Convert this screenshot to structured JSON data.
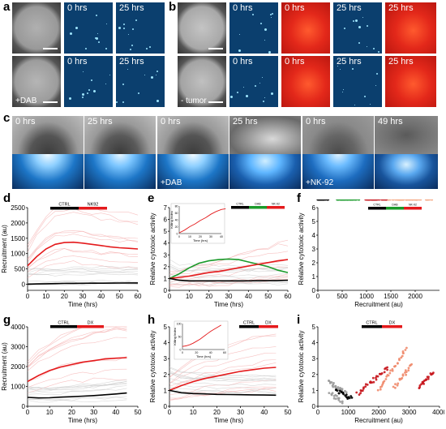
{
  "panel_labels": {
    "a": "a",
    "b": "b",
    "c": "c",
    "d": "d",
    "e": "e",
    "f": "f",
    "g": "g",
    "h": "h",
    "i": "i"
  },
  "panel_a": {
    "row1": {
      "t1": "0 hrs",
      "t2": "25 hrs"
    },
    "row2": {
      "t1": "0 hrs",
      "t2": "25 hrs",
      "treatment": "+DAB"
    }
  },
  "panel_b": {
    "row1": {
      "t1": "0 hrs",
      "t2": "0 hrs",
      "t3": "25 hrs",
      "t4": "25 hrs"
    },
    "row2": {
      "t1": "0 hrs",
      "t2": "0 hrs",
      "t3": "25 hrs",
      "t4": "25 hrs",
      "treatment": "- tumor"
    }
  },
  "panel_c": {
    "g1": {
      "t1": "0 hrs",
      "t2": "25 hrs"
    },
    "g2": {
      "t1": "0 hrs",
      "t2": "25 hrs",
      "treatment": "+DAB"
    },
    "g3": {
      "t1": "0 hrs",
      "t2": "49 hrs",
      "treatment": "+NK-92"
    }
  },
  "colors": {
    "ctrl": "#000000",
    "red": "#e41a1c",
    "green": "#1a9a2a",
    "faint_red": "#f3a8a8",
    "faint_gray": "#c8c8c8",
    "micro_bg": "#0b3f6e",
    "fluor_red": "#d81d12"
  },
  "chart_data": [
    {
      "id": "d",
      "type": "line",
      "title": "",
      "xlabel": "Time (hrs)",
      "ylabel": "Recruitment (au)",
      "xlim": [
        0,
        60
      ],
      "ylim": [
        -200,
        2500
      ],
      "xticks": [
        0,
        10,
        20,
        30,
        40,
        50,
        60
      ],
      "yticks": [
        0,
        500,
        1000,
        1500,
        2000,
        2500
      ],
      "legend": {
        "ctrl": "CTRL",
        "treat": "NK92"
      },
      "x": [
        0,
        5,
        10,
        15,
        20,
        25,
        30,
        35,
        40,
        45,
        50,
        55,
        60
      ],
      "series": [
        {
          "color": "#e41a1c",
          "values": [
            600,
            900,
            1150,
            1300,
            1360,
            1370,
            1340,
            1300,
            1260,
            1220,
            1190,
            1170,
            1150
          ]
        },
        {
          "color": "#000000",
          "values": [
            0,
            10,
            15,
            20,
            25,
            28,
            30,
            32,
            34,
            36,
            38,
            40,
            42
          ]
        }
      ]
    },
    {
      "id": "e",
      "type": "line",
      "title": "",
      "xlabel": "Time (hrs)",
      "ylabel": "Relative cytotoxic activity",
      "xlim": [
        0,
        60
      ],
      "ylim": [
        0,
        7
      ],
      "xticks": [
        0,
        10,
        20,
        30,
        40,
        50,
        60
      ],
      "yticks": [
        0,
        1,
        2,
        3,
        4,
        5,
        6,
        7
      ],
      "legend": {
        "ctrl": "CTRL",
        "mid": "DAB",
        "treat": "NK-92"
      },
      "x": [
        0,
        5,
        10,
        15,
        20,
        25,
        30,
        35,
        40,
        45,
        50,
        55,
        60
      ],
      "series": [
        {
          "color": "#1a9a2a",
          "values": [
            1.0,
            1.4,
            1.9,
            2.3,
            2.5,
            2.6,
            2.65,
            2.6,
            2.4,
            2.2,
            2.0,
            1.7,
            1.5
          ]
        },
        {
          "color": "#e41a1c",
          "values": [
            1.0,
            1.1,
            1.2,
            1.35,
            1.5,
            1.6,
            1.75,
            1.9,
            2.05,
            2.2,
            2.35,
            2.5,
            2.6
          ]
        },
        {
          "color": "#000000",
          "values": [
            1.0,
            0.85,
            0.8,
            0.8,
            0.8,
            0.8,
            0.8,
            0.8,
            0.8,
            0.82,
            0.82,
            0.83,
            0.85
          ]
        }
      ],
      "inset": {
        "xlabel": "Time (hrs)",
        "ylabel": "Killing Index",
        "xlim": [
          0,
          40
        ],
        "ylim": [
          0,
          80
        ],
        "xticks": [
          0,
          10,
          20,
          30,
          40
        ],
        "yticks": [
          0,
          20,
          40,
          60,
          80
        ],
        "x": [
          0,
          5,
          10,
          15,
          20,
          25,
          30,
          35,
          40,
          44
        ],
        "values": [
          2,
          10,
          20,
          28,
          38,
          46,
          56,
          64,
          70,
          72
        ]
      }
    },
    {
      "id": "f",
      "type": "scatter",
      "title": "",
      "xlabel": "Recruitment (au)",
      "ylabel": "Relative cytotoxic activity",
      "xlim": [
        0,
        2500
      ],
      "ylim": [
        0,
        6
      ],
      "xticks": [
        0,
        500,
        1000,
        1500,
        2000
      ],
      "yticks": [
        0,
        1,
        2,
        3,
        4,
        5,
        6
      ],
      "legend": {
        "ctrl": "CTRL",
        "mid": "DAB",
        "treat": "NK-92"
      }
    },
    {
      "id": "g",
      "type": "line",
      "title": "",
      "xlabel": "Time (hrs)",
      "ylabel": "Recruitment (au)",
      "xlim": [
        0,
        50
      ],
      "ylim": [
        0,
        4000
      ],
      "xticks": [
        0,
        10,
        20,
        30,
        40,
        50
      ],
      "yticks": [
        0,
        1000,
        2000,
        3000,
        4000
      ],
      "legend": {
        "ctrl": "CTRL",
        "treat": "DX"
      },
      "x": [
        0,
        5,
        10,
        15,
        20,
        25,
        30,
        35,
        40,
        45
      ],
      "series": [
        {
          "color": "#e41a1c",
          "values": [
            1250,
            1550,
            1800,
            1980,
            2100,
            2220,
            2300,
            2380,
            2420,
            2450
          ]
        },
        {
          "color": "#000000",
          "values": [
            450,
            420,
            430,
            460,
            480,
            510,
            540,
            580,
            620,
            670
          ]
        }
      ]
    },
    {
      "id": "h",
      "type": "line",
      "title": "",
      "xlabel": "Time (hrs)",
      "ylabel": "Relative cytotoxic activity",
      "xlim": [
        0,
        50
      ],
      "ylim": [
        0,
        5
      ],
      "xticks": [
        0,
        10,
        20,
        30,
        40,
        50
      ],
      "yticks": [
        0,
        1,
        2,
        3,
        4,
        5
      ],
      "legend": {
        "ctrl": "CTRL",
        "treat": "DX"
      },
      "x": [
        0,
        5,
        10,
        15,
        20,
        25,
        30,
        35,
        40,
        45
      ],
      "series": [
        {
          "color": "#e41a1c",
          "values": [
            1.0,
            1.3,
            1.55,
            1.75,
            1.9,
            2.05,
            2.2,
            2.3,
            2.4,
            2.45
          ]
        },
        {
          "color": "#000000",
          "values": [
            1.0,
            0.85,
            0.8,
            0.78,
            0.75,
            0.74,
            0.73,
            0.72,
            0.71,
            0.7
          ]
        }
      ],
      "inset": {
        "xlabel": "Time (hrs)",
        "ylabel": "Killing Index",
        "xlim": [
          0,
          60
        ],
        "ylim": [
          0,
          100
        ],
        "xticks": [
          0,
          20,
          40,
          60
        ],
        "yticks": [
          0,
          50,
          100
        ],
        "x": [
          0,
          5,
          10,
          15,
          20,
          25,
          30,
          35,
          40,
          45,
          50,
          55
        ],
        "values": [
          12,
          14,
          18,
          24,
          32,
          40,
          50,
          60,
          70,
          78,
          86,
          94
        ]
      }
    },
    {
      "id": "i",
      "type": "scatter",
      "title": "",
      "xlabel": "Recruitment (au)",
      "ylabel": "Relative cytotoxic activity",
      "xlim": [
        0,
        4000
      ],
      "ylim": [
        0,
        5
      ],
      "xticks": [
        0,
        1000,
        2000,
        3000,
        4000
      ],
      "yticks": [
        0,
        1,
        2,
        3,
        4,
        5
      ],
      "legend": {
        "ctrl": "CTRL",
        "treat": "DX"
      }
    }
  ]
}
